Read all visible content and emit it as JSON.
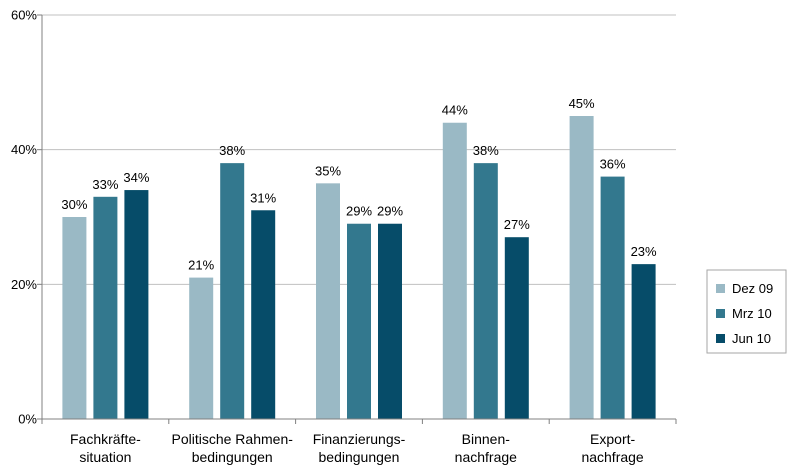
{
  "chart_data": {
    "type": "bar",
    "categories": [
      [
        "Fachkräfte-",
        "situation"
      ],
      [
        "Politische Rahmen-",
        "bedingungen"
      ],
      [
        "Finanzierungs-",
        "bedingungen"
      ],
      [
        "Binnen-",
        "nachfrage"
      ],
      [
        "Export-",
        "nachfrage"
      ]
    ],
    "series": [
      {
        "name": "Dez 09",
        "color": "#9ab9c5",
        "values": [
          30,
          21,
          35,
          44,
          45
        ],
        "labels": [
          "30%",
          "21%",
          "35%",
          "44%",
          "45%"
        ]
      },
      {
        "name": "Mrz 10",
        "color": "#33788e",
        "values": [
          33,
          38,
          29,
          38,
          36
        ],
        "labels": [
          "33%",
          "38%",
          "29%",
          "38%",
          "36%"
        ]
      },
      {
        "name": "Jun 10",
        "color": "#064c69",
        "values": [
          34,
          31,
          29,
          27,
          23
        ],
        "labels": [
          "34%",
          "31%",
          "29%",
          "27%",
          "23%"
        ]
      }
    ],
    "ylim": [
      0,
      60
    ],
    "yticks": [
      0,
      20,
      40,
      60
    ],
    "ytick_labels": [
      "0%",
      "20%",
      "40%",
      "60%"
    ],
    "grid": true,
    "legend_position": "right"
  }
}
